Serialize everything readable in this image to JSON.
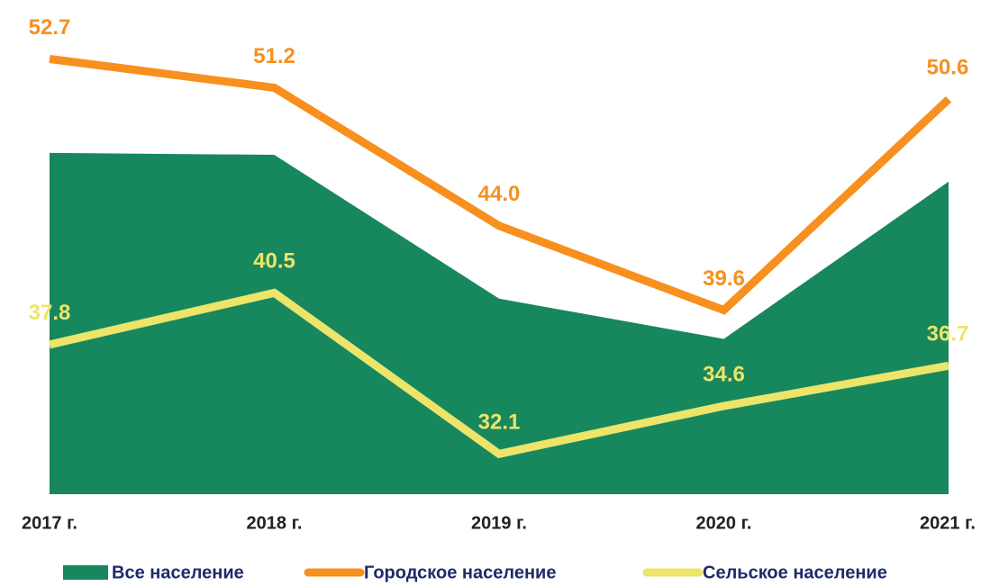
{
  "chart_data": {
    "type": "line",
    "categories": [
      "2017 г.",
      "2018 г.",
      "2019 г.",
      "2020 г.",
      "2021 г."
    ],
    "ylim": [
      30,
      55
    ],
    "series": [
      {
        "name": "Все население",
        "color": "#17875e",
        "kind": "area",
        "values": [
          47.8,
          47.7,
          40.2,
          38.1,
          46.3
        ]
      },
      {
        "name": "Городское население",
        "color": "#f7901e",
        "values": [
          52.7,
          51.2,
          44.0,
          39.6,
          50.6
        ],
        "value_labels": [
          "52.7",
          "51.2",
          "44.0",
          "39.6",
          "50.6"
        ]
      },
      {
        "name": "Сельское население",
        "color": "#ede46a",
        "values": [
          37.8,
          40.5,
          32.1,
          34.6,
          36.7
        ],
        "value_labels": [
          "37.8",
          "40.5",
          "32.1",
          "34.6",
          "36.7"
        ]
      }
    ]
  }
}
